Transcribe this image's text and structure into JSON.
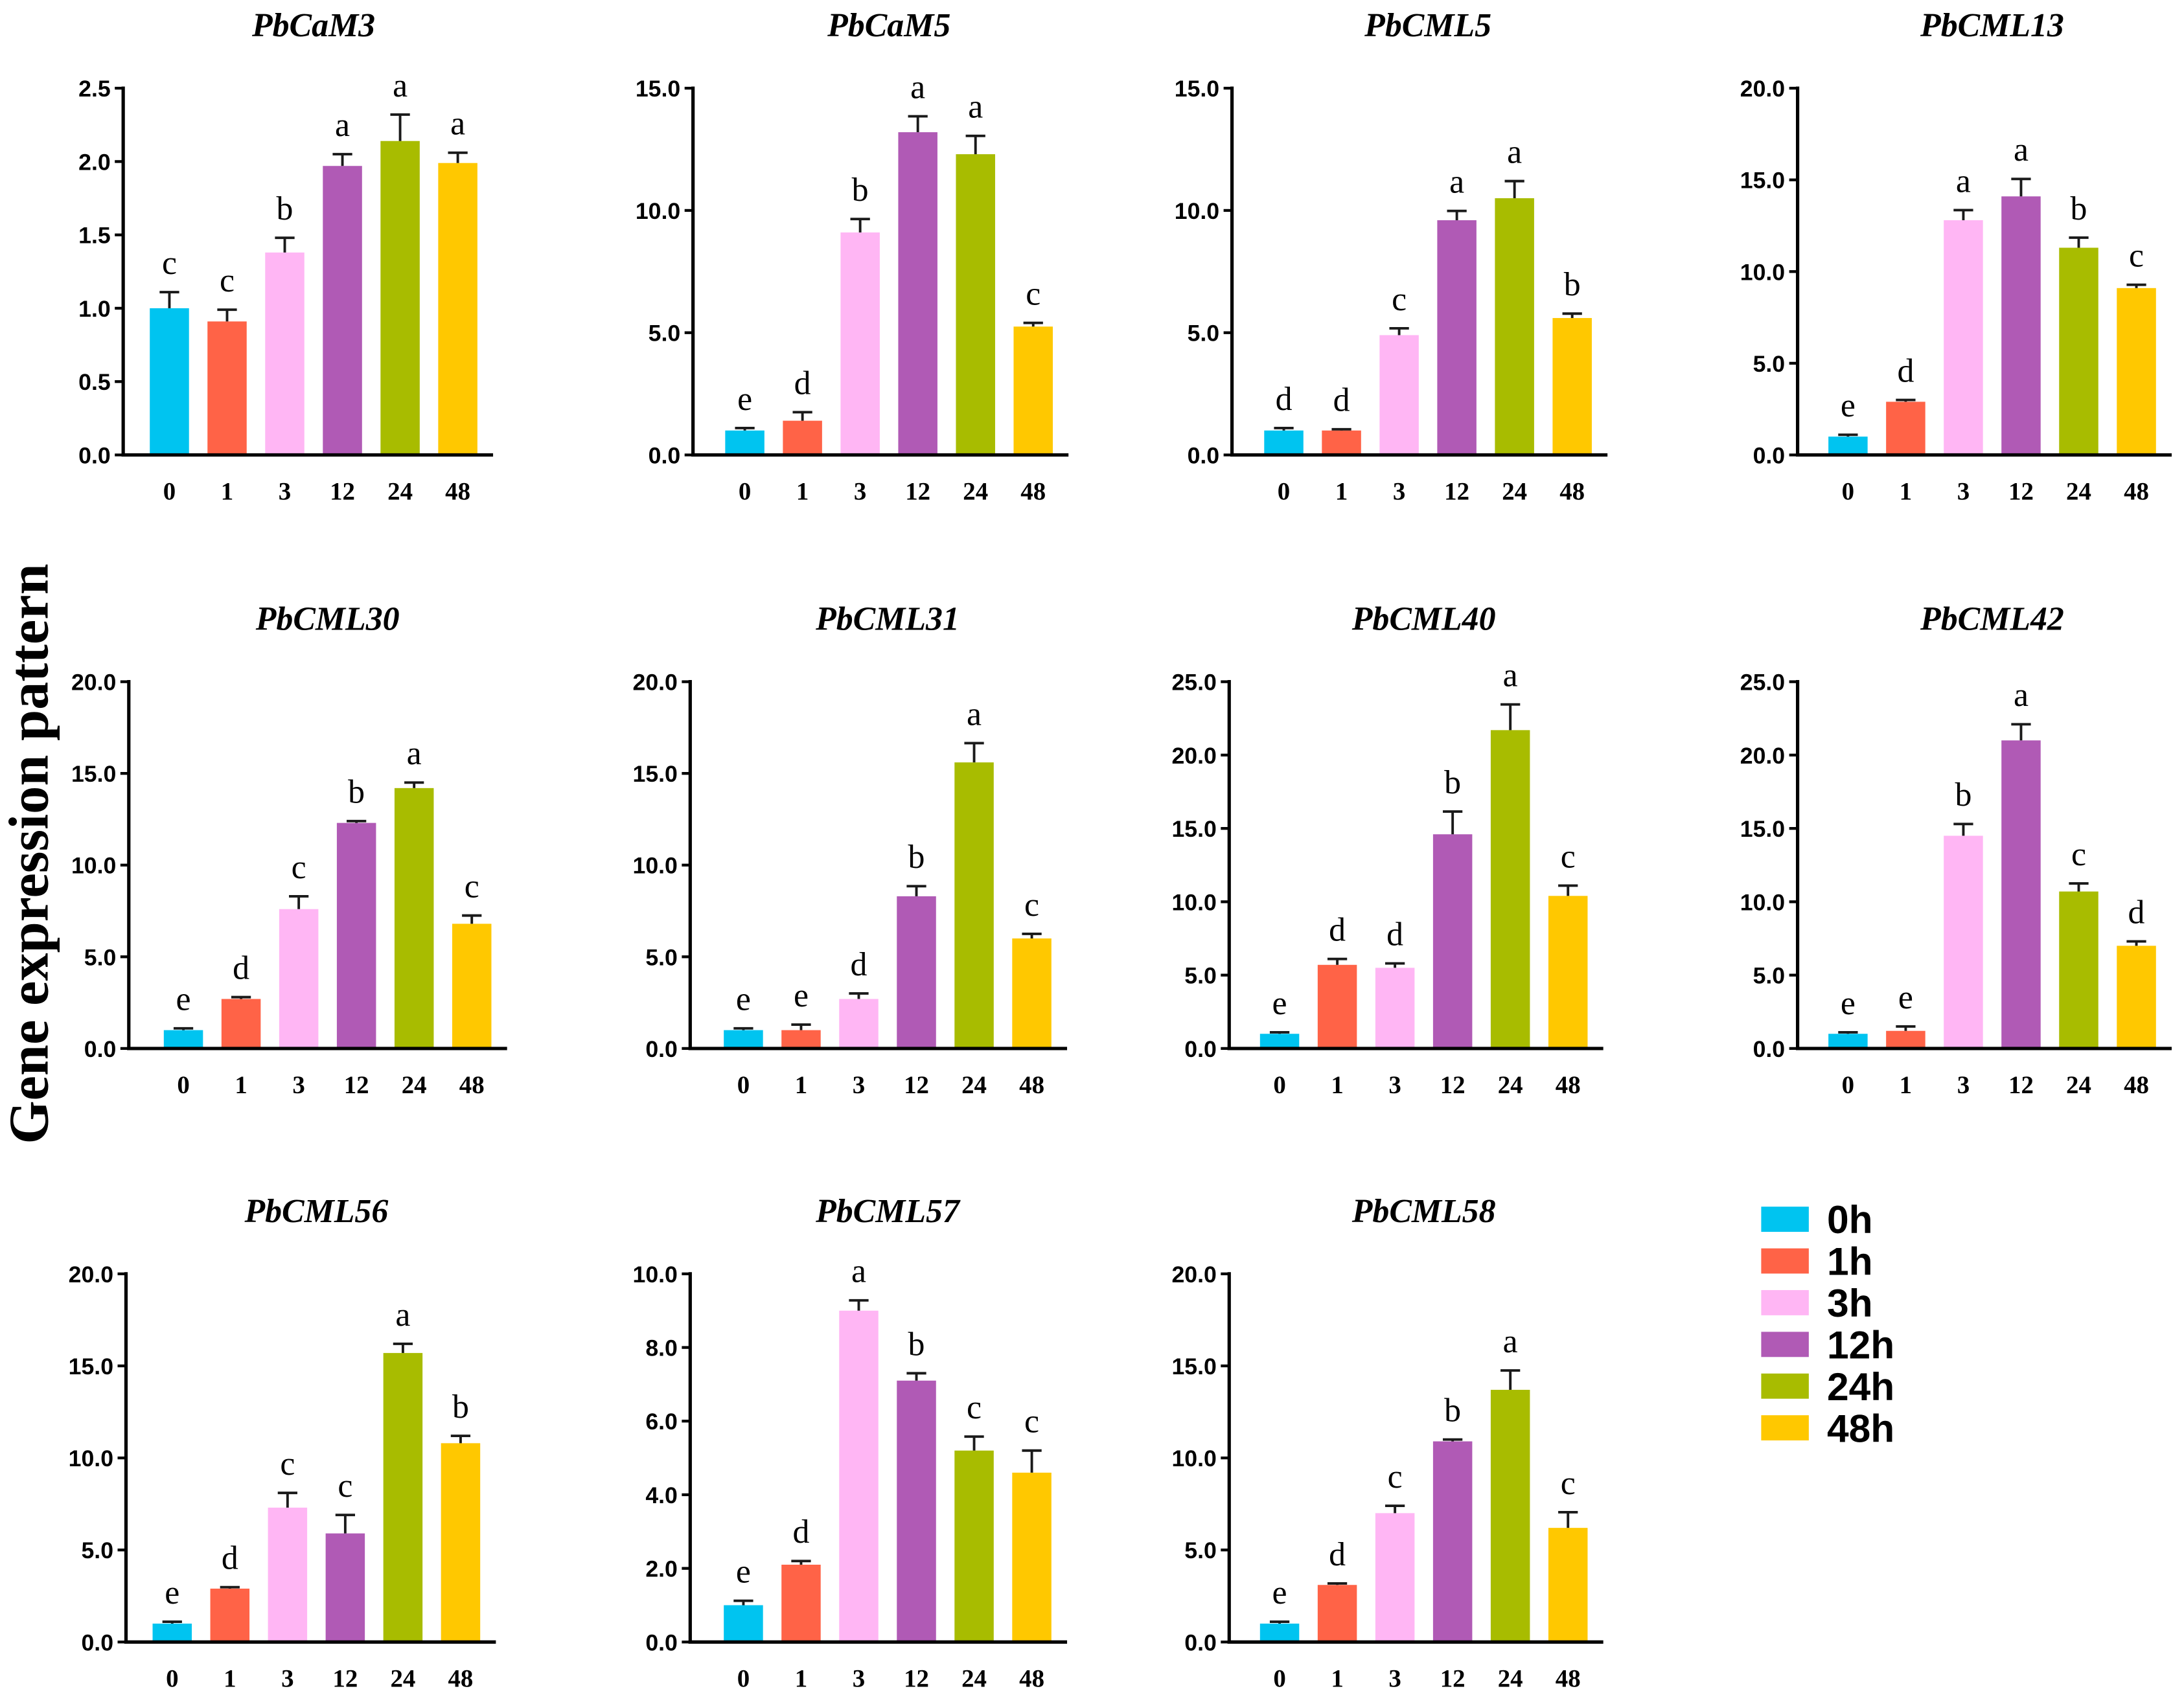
{
  "ylabel": "Gene expression pattern",
  "legend": {
    "items": [
      {
        "label": "0h",
        "color": "#00c4f0"
      },
      {
        "label": "1h",
        "color": "#ff6347"
      },
      {
        "label": "3h",
        "color": "#ffb6f4"
      },
      {
        "label": "12h",
        "color": "#b05ab5"
      },
      {
        "label": "24h",
        "color": "#a8bc00"
      },
      {
        "label": "48h",
        "color": "#ffc800"
      }
    ]
  },
  "chart_data": [
    {
      "type": "bar",
      "title": "PbCaM3",
      "xlabel": "",
      "ylabel": "",
      "categories": [
        "0",
        "1",
        "3",
        "12",
        "24",
        "48"
      ],
      "values": [
        1.0,
        0.91,
        1.38,
        1.97,
        2.14,
        1.99
      ],
      "errors": [
        0.11,
        0.08,
        0.1,
        0.08,
        0.18,
        0.07
      ],
      "letters": [
        "c",
        "c",
        "b",
        "a",
        "a",
        "a"
      ],
      "ylim": [
        0,
        2.5
      ],
      "yticks": [
        "0.0",
        "0.5",
        "1.0",
        "1.5",
        "2.0",
        "2.5"
      ]
    },
    {
      "type": "bar",
      "title": "PbCaM5",
      "xlabel": "",
      "ylabel": "",
      "categories": [
        "0",
        "1",
        "3",
        "12",
        "24",
        "48"
      ],
      "values": [
        1.0,
        1.4,
        9.1,
        13.2,
        12.3,
        5.25
      ],
      "errors": [
        0.1,
        0.35,
        0.55,
        0.65,
        0.75,
        0.15
      ],
      "letters": [
        "e",
        "d",
        "b",
        "a",
        "a",
        "c"
      ],
      "ylim": [
        0,
        15
      ],
      "yticks": [
        "0.0",
        "5.0",
        "10.0",
        "15.0"
      ]
    },
    {
      "type": "bar",
      "title": "PbCML5",
      "xlabel": "",
      "ylabel": "",
      "categories": [
        "0",
        "1",
        "3",
        "12",
        "24",
        "48"
      ],
      "values": [
        1.0,
        1.0,
        4.9,
        9.6,
        10.5,
        5.6
      ],
      "errors": [
        0.1,
        0.05,
        0.28,
        0.38,
        0.7,
        0.18
      ],
      "letters": [
        "d",
        "d",
        "c",
        "a",
        "a",
        "b"
      ],
      "ylim": [
        0,
        15
      ],
      "yticks": [
        "0.0",
        "5.0",
        "10.0",
        "15.0"
      ]
    },
    {
      "type": "bar",
      "title": "PbCML13",
      "xlabel": "",
      "ylabel": "",
      "categories": [
        "0",
        "1",
        "3",
        "12",
        "24",
        "48"
      ],
      "values": [
        1.0,
        2.9,
        12.8,
        14.1,
        11.3,
        9.1
      ],
      "errors": [
        0.1,
        0.1,
        0.55,
        0.95,
        0.55,
        0.18
      ],
      "letters": [
        "e",
        "d",
        "a",
        "a",
        "b",
        "c"
      ],
      "ylim": [
        0,
        20
      ],
      "yticks": [
        "0.0",
        "5.0",
        "10.0",
        "15.0",
        "20.0"
      ]
    },
    {
      "type": "bar",
      "title": "PbCML30",
      "xlabel": "",
      "ylabel": "",
      "categories": [
        "0",
        "1",
        "3",
        "12",
        "24",
        "48"
      ],
      "values": [
        1.0,
        2.7,
        7.6,
        12.3,
        14.2,
        6.8
      ],
      "errors": [
        0.1,
        0.1,
        0.7,
        0.1,
        0.3,
        0.45
      ],
      "letters": [
        "e",
        "d",
        "c",
        "b",
        "a",
        "c"
      ],
      "ylim": [
        0,
        20
      ],
      "yticks": [
        "0.0",
        "5.0",
        "10.0",
        "15.0",
        "20.0"
      ]
    },
    {
      "type": "bar",
      "title": "PbCML31",
      "xlabel": "",
      "ylabel": "",
      "categories": [
        "0",
        "1",
        "3",
        "12",
        "24",
        "48"
      ],
      "values": [
        1.0,
        1.0,
        2.7,
        8.3,
        15.6,
        6.0
      ],
      "errors": [
        0.1,
        0.3,
        0.3,
        0.55,
        1.05,
        0.25
      ],
      "letters": [
        "e",
        "e",
        "d",
        "b",
        "a",
        "c"
      ],
      "ylim": [
        0,
        20
      ],
      "yticks": [
        "0.0",
        "5.0",
        "10.0",
        "15.0",
        "20.0"
      ]
    },
    {
      "type": "bar",
      "title": "PbCML40",
      "xlabel": "",
      "ylabel": "",
      "categories": [
        "0",
        "1",
        "3",
        "12",
        "24",
        "48"
      ],
      "values": [
        1.0,
        5.7,
        5.5,
        14.6,
        21.7,
        10.4
      ],
      "errors": [
        0.1,
        0.4,
        0.3,
        1.55,
        1.75,
        0.7
      ],
      "letters": [
        "e",
        "d",
        "d",
        "b",
        "a",
        "c"
      ],
      "ylim": [
        0,
        25
      ],
      "yticks": [
        "0.0",
        "5.0",
        "10.0",
        "15.0",
        "20.0",
        "25.0"
      ]
    },
    {
      "type": "bar",
      "title": "PbCML42",
      "xlabel": "",
      "ylabel": "",
      "categories": [
        "0",
        "1",
        "3",
        "12",
        "24",
        "48"
      ],
      "values": [
        1.0,
        1.2,
        14.5,
        21.0,
        10.7,
        7.0
      ],
      "errors": [
        0.1,
        0.3,
        0.8,
        1.1,
        0.55,
        0.3
      ],
      "letters": [
        "e",
        "e",
        "b",
        "a",
        "c",
        "d"
      ],
      "ylim": [
        0,
        25
      ],
      "yticks": [
        "0.0",
        "5.0",
        "10.0",
        "15.0",
        "20.0",
        "25.0"
      ]
    },
    {
      "type": "bar",
      "title": "PbCML56",
      "xlabel": "",
      "ylabel": "",
      "categories": [
        "0",
        "1",
        "3",
        "12",
        "24",
        "48"
      ],
      "values": [
        1.0,
        2.9,
        7.3,
        5.9,
        15.7,
        10.8
      ],
      "errors": [
        0.1,
        0.08,
        0.8,
        1.0,
        0.5,
        0.4
      ],
      "letters": [
        "e",
        "d",
        "c",
        "c",
        "a",
        "b"
      ],
      "ylim": [
        0,
        20
      ],
      "yticks": [
        "0.0",
        "5.0",
        "10.0",
        "15.0",
        "20.0"
      ]
    },
    {
      "type": "bar",
      "title": "PbCML57",
      "xlabel": "",
      "ylabel": "",
      "categories": [
        "0",
        "1",
        "3",
        "12",
        "24",
        "48"
      ],
      "values": [
        1.0,
        2.1,
        9.0,
        7.1,
        5.2,
        4.6
      ],
      "errors": [
        0.12,
        0.1,
        0.28,
        0.2,
        0.38,
        0.6
      ],
      "letters": [
        "e",
        "d",
        "a",
        "b",
        "c",
        "c"
      ],
      "ylim": [
        0,
        10
      ],
      "yticks": [
        "0.0",
        "2.0",
        "4.0",
        "6.0",
        "8.0",
        "10.0"
      ]
    },
    {
      "type": "bar",
      "title": "PbCML58",
      "xlabel": "",
      "ylabel": "",
      "categories": [
        "0",
        "1",
        "3",
        "12",
        "24",
        "48"
      ],
      "values": [
        1.0,
        3.1,
        7.0,
        10.9,
        13.7,
        6.2
      ],
      "errors": [
        0.1,
        0.08,
        0.4,
        0.1,
        1.05,
        0.85
      ],
      "letters": [
        "e",
        "d",
        "c",
        "b",
        "a",
        "c"
      ],
      "ylim": [
        0,
        20
      ],
      "yticks": [
        "0.0",
        "5.0",
        "10.0",
        "15.0",
        "20.0"
      ]
    }
  ]
}
